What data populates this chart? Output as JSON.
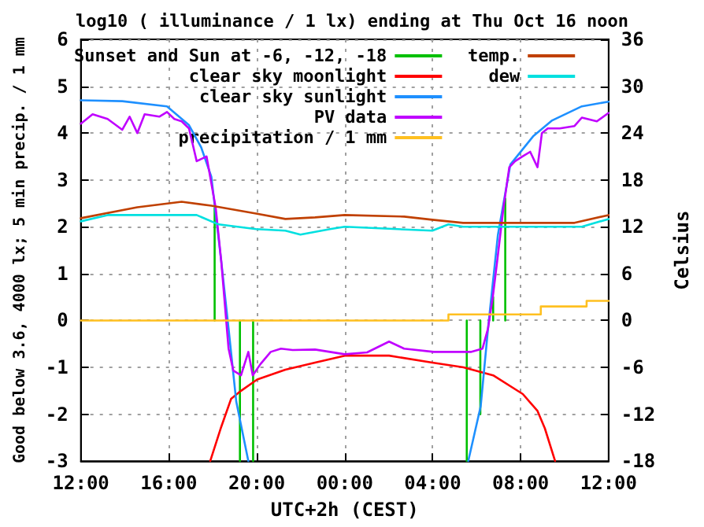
{
  "chart_data": {
    "type": "line",
    "title": "log10 ( illuminance / 1 lx) ending at Thu Oct 16 noon",
    "xlabel": "UTC+2h (CEST)",
    "ylabel": "Good below 3.6, 4000 lx; 5 min precip. / 1 mm",
    "y2label": "Celsius",
    "xlim": [
      "--10-15T12:00",
      "--10-16T12:00"
    ],
    "xticks": [
      {
        "value": "--10-15T12:00",
        "label": "12:00"
      },
      {
        "value": "--10-15T16:00",
        "label": "16:00"
      },
      {
        "value": "--10-15T20:00",
        "label": "20:00"
      },
      {
        "value": "--10-16T00:00",
        "label": "00:00"
      },
      {
        "value": "--10-16T04:00",
        "label": "04:00"
      },
      {
        "value": "--10-16T08:00",
        "label": "08:00"
      },
      {
        "value": "--10-16T12:00",
        "label": "12:00"
      }
    ],
    "ylim": [
      -3,
      6
    ],
    "yticks": [
      -3,
      -2,
      -1,
      0,
      1,
      2,
      3,
      4,
      5,
      6
    ],
    "y2lim": [
      -18,
      36
    ],
    "y2ticks": [
      -18,
      -12,
      -6,
      0,
      6,
      12,
      18,
      24,
      30,
      36
    ],
    "grid": true,
    "legend": "top left",
    "marker": "none",
    "line_style": "solid",
    "series": [
      {
        "name": "Sunset and Sun at -6, -12, -18",
        "color": "#00c000",
        "x": [
          "--10-15T18:05",
          "--10-15T18:05",
          null,
          "--10-15T19:14",
          "--10-15T19:14",
          null,
          "--10-15T19:50",
          "--10-15T19:50",
          null,
          "--10-16T05:33",
          "--10-16T05:33",
          null,
          "--10-16T06:10",
          "--10-16T06:10",
          null,
          "--10-16T06:45",
          "--10-16T06:45",
          null,
          "--10-16T07:18",
          "--10-16T07:18"
        ],
        "values": [
          0,
          2.4,
          null,
          0,
          -3,
          null,
          0,
          -3,
          null,
          0,
          -3,
          null,
          0,
          -2,
          null,
          0,
          0.5,
          null,
          0,
          2.6
        ]
      },
      {
        "name": "clear sky moonlight",
        "color": "#ff0000",
        "x": [
          "--10-15T17:53",
          "--10-15T18:23",
          "--10-15T18:50",
          "--10-15T19:17",
          "--10-15T20:01",
          "--10-15T21:18",
          "--10-15T22:39",
          "--10-16T00:00",
          "--10-16T02:01",
          "--10-16T03:59",
          "--10-16T05:24",
          "--10-16T06:45",
          "--10-16T08:06",
          "--10-16T08:46",
          "--10-16T09:06",
          "--10-16T09:34"
        ],
        "values": [
          -3,
          -2.27,
          -1.67,
          -1.5,
          -1.26,
          -1.05,
          -0.9,
          -0.75,
          -0.75,
          -0.9,
          -1.0,
          -1.17,
          -1.57,
          -1.93,
          -2.3,
          -3
        ]
      },
      {
        "name": "clear sky sunlight",
        "color": "#1e90ff",
        "x": [
          "--10-15T12:00",
          "--10-15T13:53",
          "--10-15T15:55",
          "--10-15T16:55",
          "--10-15T17:28",
          "--10-15T17:56",
          "--10-15T18:23",
          "--10-15T18:43",
          "--10-15T19:04",
          "--10-15T19:37",
          "--10-16T00:00",
          "--10-16T05:37",
          "--10-16T06:11",
          "--10-16T06:31",
          "--10-16T06:58",
          "--10-16T07:32",
          "--10-16T08:34",
          "--10-16T09:26",
          "--10-16T10:47",
          "--10-16T12:00"
        ],
        "values": [
          4.7,
          4.68,
          4.57,
          4.17,
          3.7,
          3.07,
          1.27,
          -0.17,
          -1.73,
          -3,
          null,
          -3,
          -1.83,
          -0.17,
          1.83,
          3.33,
          3.93,
          4.27,
          4.57,
          4.67
        ]
      },
      {
        "name": "PV data",
        "color": "#c000ff",
        "x": [
          "--10-15T12:00",
          "--10-15T12:32",
          "--10-15T13:13",
          "--10-15T13:53",
          "--10-15T14:13",
          "--10-15T14:34",
          "--10-15T14:54",
          "--10-15T15:34",
          "--10-15T15:55",
          "--10-15T16:15",
          "--10-15T16:35",
          "--10-15T16:55",
          "--10-15T17:16",
          "--10-15T17:43",
          "--10-15T18:08",
          "--10-15T18:23",
          "--10-15T18:43",
          "--10-15T18:56",
          "--10-15T19:17",
          "--10-15T19:37",
          "--10-15T19:49",
          "--10-15T20:10",
          "--10-15T20:38",
          "--10-15T21:06",
          "--10-15T21:38",
          "--10-15T22:39",
          "--10-16T00:00",
          "--10-16T01:01",
          "--10-16T02:01",
          "--10-16T02:42",
          "--10-16T04:03",
          "--10-16T05:44",
          "--10-16T06:16",
          "--10-16T06:31",
          "--10-16T06:44",
          "--10-16T06:56",
          "--10-16T07:13",
          "--10-16T07:29",
          "--10-16T07:45",
          "--10-16T08:05",
          "--10-16T08:26",
          "--10-16T08:46",
          "--10-16T08:58",
          "--10-16T09:14",
          "--10-16T09:47",
          "--10-16T10:27",
          "--10-16T10:47",
          "--10-16T11:28",
          "--10-16T12:00"
        ],
        "values": [
          4.2,
          4.4,
          4.3,
          4.07,
          4.35,
          4.0,
          4.4,
          4.35,
          4.45,
          4.3,
          4.25,
          4.1,
          3.4,
          3.5,
          2.4,
          1.27,
          -0.6,
          -1.07,
          -1.17,
          -0.67,
          -1.17,
          -0.93,
          -0.67,
          -0.6,
          -0.63,
          -0.62,
          -0.72,
          -0.68,
          -0.45,
          -0.6,
          -0.67,
          -0.67,
          -0.6,
          -0.17,
          0.5,
          1.27,
          2.4,
          3.27,
          3.4,
          3.5,
          3.6,
          3.27,
          4.0,
          4.1,
          4.1,
          4.15,
          4.33,
          4.25,
          4.43
        ]
      },
      {
        "name": "precipitation / 1 mm",
        "type": "step",
        "color": "#ffc020",
        "x": [
          "--10-15T12:00",
          "--10-16T04:43",
          "--10-16T08:55",
          "--10-16T11:00",
          "--10-16T12:00"
        ],
        "values": [
          0,
          0.13,
          0.3,
          0.42,
          0.42
        ]
      },
      {
        "name": "temp.",
        "color": "#c04000",
        "axis": "y2",
        "x": [
          "--10-15T12:00",
          "--10-15T14:34",
          "--10-15T16:35",
          "--10-15T17:56",
          "--10-15T19:58",
          "--10-15T21:18",
          "--10-15T22:39",
          "--10-16T00:00",
          "--10-16T02:42",
          "--10-16T03:59",
          "--10-16T05:23",
          "--10-16T08:05",
          "--10-16T10:27",
          "--10-16T12:00"
        ],
        "values": [
          13.1,
          14.5,
          15.2,
          14.7,
          13.7,
          13.0,
          13.2,
          13.5,
          13.3,
          12.9,
          12.5,
          12.5,
          12.5,
          13.5
        ]
      },
      {
        "name": "dew",
        "color": "#00e0e0",
        "axis": "y2",
        "x": [
          "--10-15T12:00",
          "--10-15T13:13",
          "--10-15T15:55",
          "--10-15T17:16",
          "--10-15T18:16",
          "--10-15T19:58",
          "--10-15T21:18",
          "--10-15T21:59",
          "--10-15T23:20",
          "--10-16T00:00",
          "--10-16T03:59",
          "--10-16T04:43",
          "--10-16T05:23",
          "--10-16T10:47",
          "--10-16T12:00"
        ],
        "values": [
          12.7,
          13.5,
          13.5,
          13.5,
          12.3,
          11.7,
          11.5,
          11.0,
          11.7,
          12.0,
          11.5,
          12.3,
          12.0,
          12.0,
          13.0
        ]
      }
    ]
  }
}
